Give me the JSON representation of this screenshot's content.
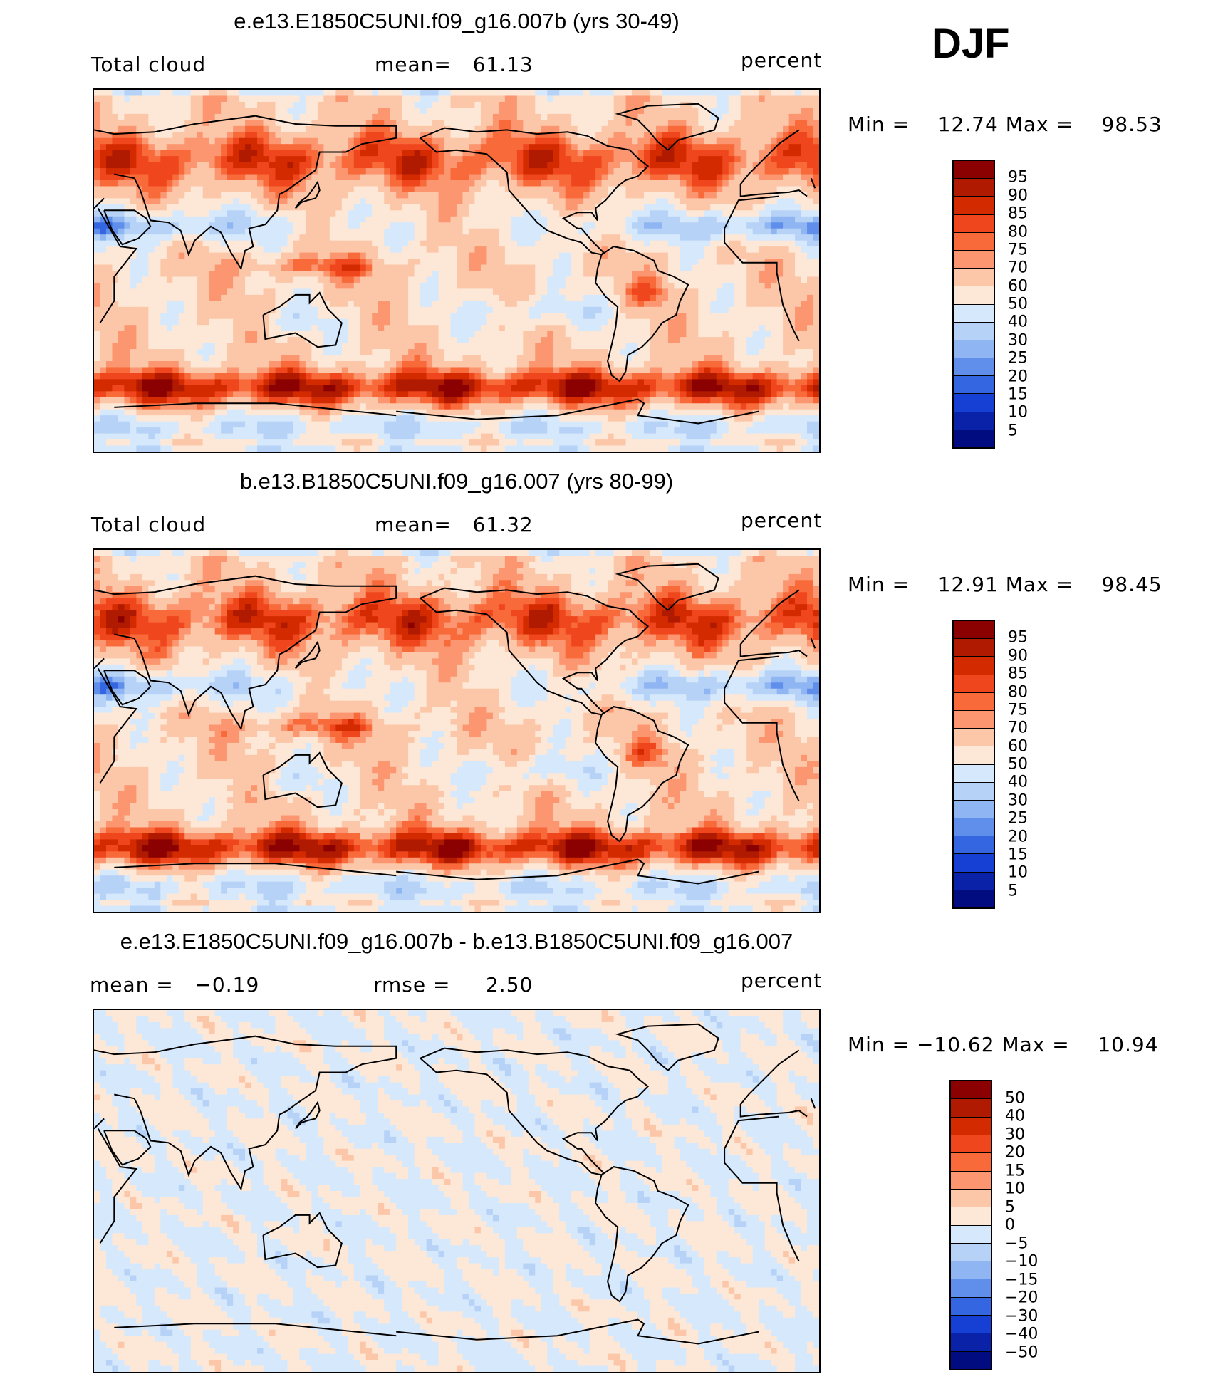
{
  "season": "DJF",
  "chart_data": [
    {
      "type": "heatmap",
      "title": "e.e13.E1850C5UNI.f09_g16.007b (yrs 30-49)",
      "left_label": "Total cloud",
      "center_label": "mean=   61.13",
      "units": "percent",
      "mean": 61.13,
      "stats": "Min =    12.74 Max =    98.53",
      "min": 12.74,
      "max": 98.53,
      "levels": [
        "95",
        "90",
        "85",
        "80",
        "75",
        "70",
        "60",
        "50",
        "40",
        "30",
        "25",
        "20",
        "15",
        "10",
        "5"
      ],
      "colors": [
        "#8b0000",
        "#b01a00",
        "#d42a00",
        "#f0461e",
        "#f86a3a",
        "#fb9670",
        "#fcc7a8",
        "#fde8d8",
        "#d6e8fb",
        "#b7d2f7",
        "#8fb6f2",
        "#5f8fea",
        "#3466e2",
        "#1640d4",
        "#0a22a8",
        "#000c80"
      ]
    },
    {
      "type": "heatmap",
      "title": "b.e13.B1850C5UNI.f09_g16.007 (yrs 80-99)",
      "left_label": "Total cloud",
      "center_label": "mean=   61.32",
      "units": "percent",
      "mean": 61.32,
      "stats": "Min =    12.91 Max =    98.45",
      "min": 12.91,
      "max": 98.45,
      "levels": [
        "95",
        "90",
        "85",
        "80",
        "75",
        "70",
        "60",
        "50",
        "40",
        "30",
        "25",
        "20",
        "15",
        "10",
        "5"
      ],
      "colors": [
        "#8b0000",
        "#b01a00",
        "#d42a00",
        "#f0461e",
        "#f86a3a",
        "#fb9670",
        "#fcc7a8",
        "#fde8d8",
        "#d6e8fb",
        "#b7d2f7",
        "#8fb6f2",
        "#5f8fea",
        "#3466e2",
        "#1640d4",
        "#0a22a8",
        "#000c80"
      ]
    },
    {
      "type": "heatmap",
      "title": "e.e13.E1850C5UNI.f09_g16.007b - b.e13.B1850C5UNI.f09_g16.007",
      "left_label": "mean =   −0.19",
      "center_label": "rmse =     2.50",
      "units": "percent",
      "mean": -0.19,
      "rmse": 2.5,
      "stats": "Min = −10.62 Max =    10.94",
      "min": -10.62,
      "max": 10.94,
      "levels": [
        "50",
        "40",
        "30",
        "20",
        "15",
        "10",
        "5",
        "0",
        "−5",
        "−10",
        "−15",
        "−20",
        "−30",
        "−40",
        "−50"
      ],
      "colors": [
        "#8b0000",
        "#b01a00",
        "#d42a00",
        "#f0461e",
        "#f86a3a",
        "#fb9670",
        "#fcc7a8",
        "#fde8d8",
        "#d6e8fb",
        "#b7d2f7",
        "#8fb6f2",
        "#5f8fea",
        "#3466e2",
        "#1640d4",
        "#0a22a8",
        "#000c80"
      ]
    }
  ]
}
